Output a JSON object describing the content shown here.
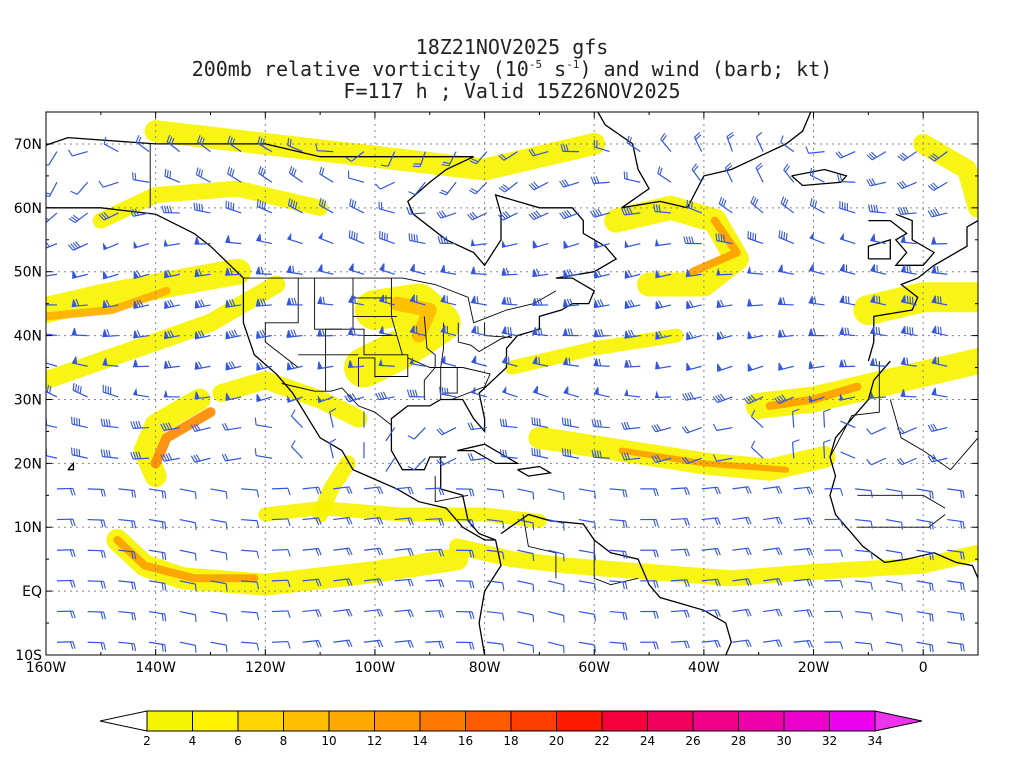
{
  "title": {
    "line1": "18Z21NOV2025 gfs",
    "line2_prefix": "200mb relative vorticity (10",
    "line2_exp1": "-5",
    "line2_mid": " s",
    "line2_exp2": "-1",
    "line2_suffix": ") and wind (barb; kt)",
    "line3": "F=117 h ; Valid 15Z26NOV2025"
  },
  "map": {
    "lon_range": [
      -160,
      10
    ],
    "lat_range": [
      -10,
      75
    ],
    "lat_ticks": [
      "10S",
      "EQ",
      "10N",
      "20N",
      "30N",
      "40N",
      "50N",
      "60N",
      "70N"
    ],
    "lon_ticks": [
      "160W",
      "140W",
      "120W",
      "100W",
      "80W",
      "60W",
      "40W",
      "20W",
      "0"
    ],
    "colors": {
      "land_outline": "#000000",
      "barbs": "#3355dd",
      "grid": "#888888"
    }
  },
  "colorbar": {
    "labels": [
      "2",
      "4",
      "6",
      "8",
      "10",
      "12",
      "14",
      "16",
      "18",
      "20",
      "22",
      "24",
      "26",
      "28",
      "30",
      "32",
      "34"
    ],
    "colors": [
      "#f2f700",
      "#fff200",
      "#ffd400",
      "#ffbf00",
      "#ffaa00",
      "#ff9500",
      "#ff7a00",
      "#ff5c00",
      "#ff3d00",
      "#ff1a00",
      "#f5003a",
      "#f0005a",
      "#ee0088",
      "#ee00aa",
      "#ee00cc",
      "#ee00ee"
    ]
  }
}
